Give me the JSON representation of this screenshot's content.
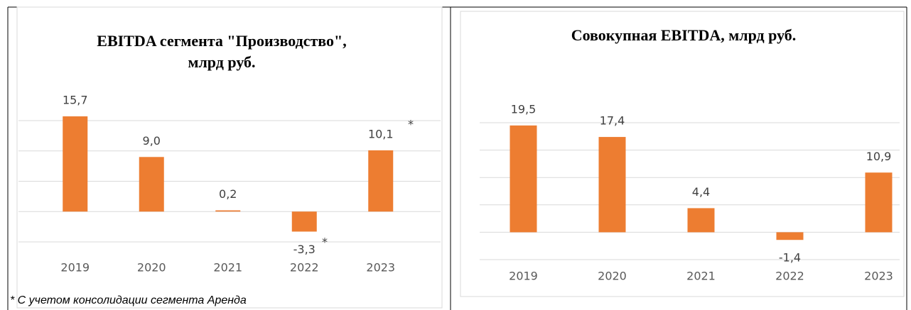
{
  "chart_data": [
    {
      "type": "bar",
      "title": [
        "EBITDA сегмента \"Производство\",",
        "млрд руб."
      ],
      "categories": [
        "2019",
        "2020",
        "2021",
        "2022",
        "2023"
      ],
      "values": [
        15.7,
        9.0,
        0.2,
        -3.3,
        10.1
      ],
      "value_labels": [
        "15,7",
        "9,0",
        "0,2",
        "-3,3",
        "10,1"
      ],
      "color": "#ed7d31",
      "ylim": [
        -5,
        15
      ],
      "yticks": [
        -5,
        0,
        5,
        10,
        15
      ],
      "grid": true,
      "annotations": [
        "*",
        "*"
      ],
      "footnote": "* С учетом консолидации сегмента Аренда"
    },
    {
      "type": "bar",
      "title": [
        "Совокупная EBITDA, млрд руб."
      ],
      "categories": [
        "2019",
        "2020",
        "2021",
        "2022",
        "2023"
      ],
      "values": [
        19.5,
        17.4,
        4.4,
        -1.4,
        10.9
      ],
      "value_labels": [
        "19,5",
        "17,4",
        "4,4",
        "-1,4",
        "10,9"
      ],
      "color": "#ed7d31",
      "ylim": [
        -5,
        20
      ],
      "yticks": [
        -5,
        0,
        5,
        10,
        15,
        20
      ],
      "grid": true
    }
  ]
}
